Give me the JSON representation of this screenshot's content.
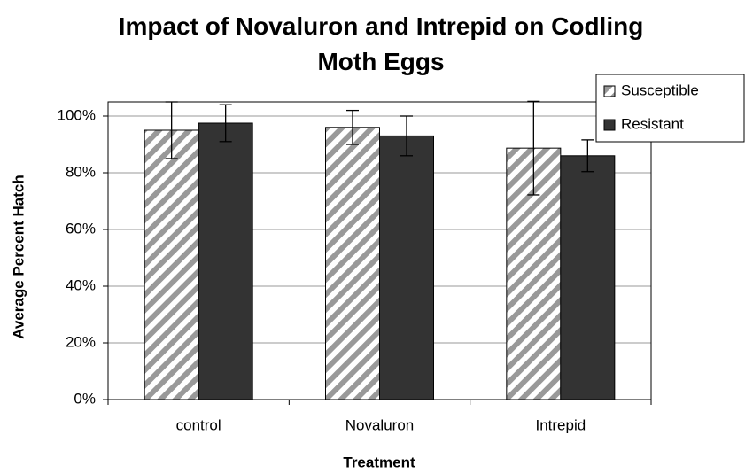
{
  "chart_data": {
    "type": "bar",
    "title": "Impact of Novaluron and Intrepid on Codling Moth Eggs",
    "x_label": "Treatment",
    "y_label": "Average Percent Hatch",
    "categories": [
      "control",
      "Novaluron",
      "Intrepid"
    ],
    "series": [
      {
        "name": "Susceptible",
        "color": "#999999",
        "hatch": true,
        "values": [
          95,
          96,
          88.7
        ],
        "errors": [
          10,
          6,
          16.5
        ]
      },
      {
        "name": "Resistant",
        "color": "#333333",
        "values": [
          97.5,
          93,
          86
        ],
        "errors": [
          6.5,
          7,
          5.6
        ]
      }
    ],
    "ylim": [
      0,
      105
    ],
    "yticks": [
      {
        "value": 0,
        "label": "0%"
      },
      {
        "value": 20,
        "label": "20%"
      },
      {
        "value": 40,
        "label": "40%"
      },
      {
        "value": 60,
        "label": "60%"
      },
      {
        "value": 80,
        "label": "80%"
      },
      {
        "value": 100,
        "label": "100%"
      }
    ],
    "grid": true,
    "legend": "top-right"
  }
}
